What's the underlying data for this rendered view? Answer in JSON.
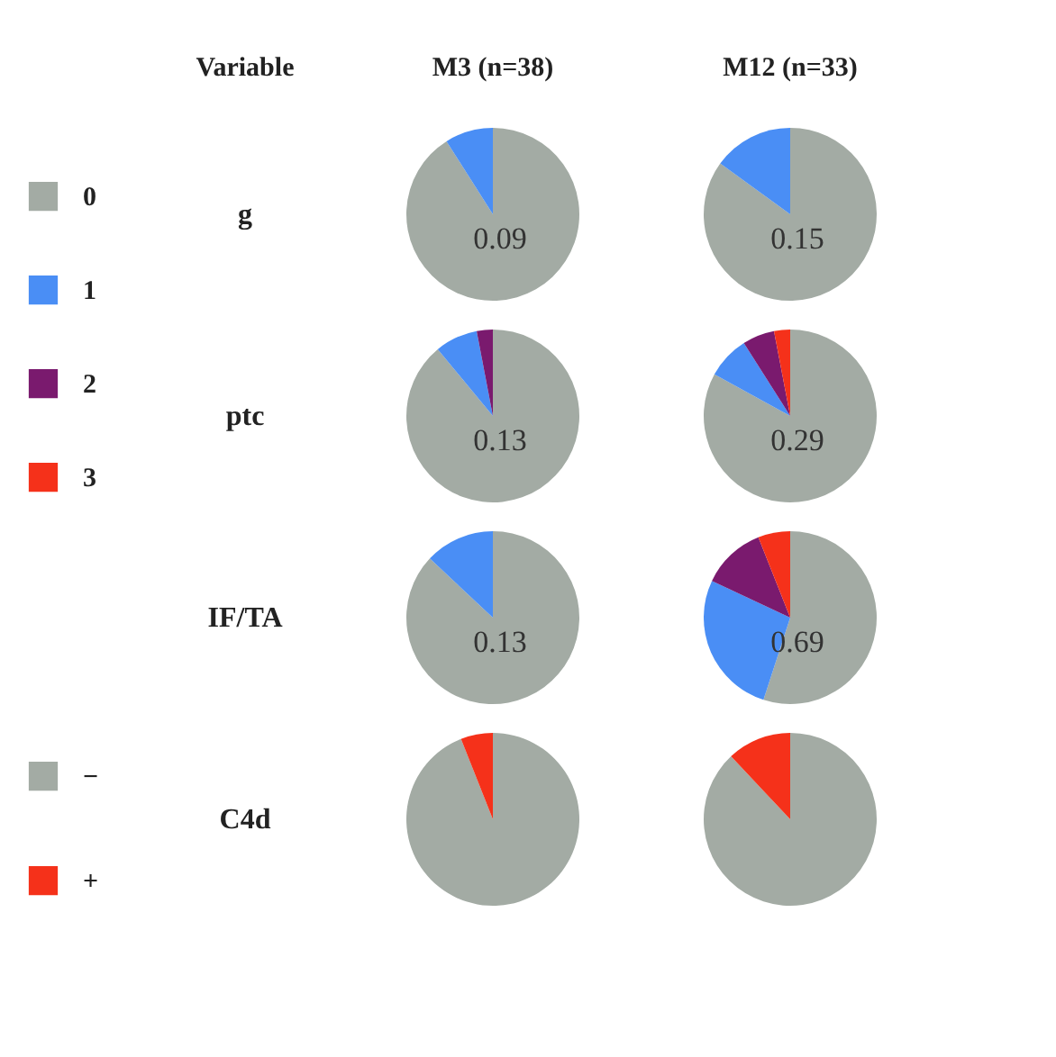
{
  "chart_data": [
    {
      "type": "other",
      "annotations": [
        "Variable",
        "M3 (n=38)",
        "M12 (n=33)"
      ]
    },
    {
      "type": "pie",
      "title": "g",
      "categories": [
        "0",
        "1",
        "2",
        "3"
      ],
      "values": [
        91,
        9,
        0,
        0
      ],
      "colors": [
        "#a3aba4",
        "#4a8ef5",
        "#7a1a6e",
        "#f5311a"
      ],
      "annotations": [
        "0.09"
      ],
      "legend": "left"
    },
    {
      "type": "pie",
      "categories": [
        null,
        null,
        null,
        null
      ],
      "values": [
        85,
        15,
        0,
        0
      ],
      "colors": [
        "#a3aba4",
        "#4a8ef5",
        "#7a1a6e",
        "#f5311a"
      ],
      "annotations": [
        "0.15"
      ]
    },
    {
      "type": "pie",
      "title": "ptc",
      "categories": [
        null,
        null,
        null,
        null
      ],
      "values": [
        89,
        8,
        3,
        0
      ],
      "colors": [
        "#a3aba4",
        "#4a8ef5",
        "#7a1a6e",
        "#f5311a"
      ],
      "annotations": [
        "0.13"
      ]
    },
    {
      "type": "pie",
      "categories": [
        null,
        null,
        null,
        null
      ],
      "values": [
        83,
        8,
        6,
        3
      ],
      "colors": [
        "#a3aba4",
        "#4a8ef5",
        "#7a1a6e",
        "#f5311a"
      ],
      "annotations": [
        "0.29"
      ]
    },
    {
      "type": "pie",
      "title": "IF/TA",
      "categories": [
        null,
        null,
        null,
        null
      ],
      "values": [
        87,
        13,
        0,
        0
      ],
      "colors": [
        "#a3aba4",
        "#4a8ef5",
        "#7a1a6e",
        "#f5311a"
      ],
      "annotations": [
        "0.13"
      ]
    },
    {
      "type": "pie",
      "categories": [
        null,
        null,
        null,
        null
      ],
      "values": [
        55,
        27,
        12,
        6
      ],
      "colors": [
        "#a3aba4",
        "#4a8ef5",
        "#7a1a6e",
        "#f5311a"
      ],
      "annotations": [
        "0.69"
      ]
    },
    {
      "type": "pie",
      "title": "C4d",
      "categories": [
        "−",
        "+"
      ],
      "values": [
        94,
        6
      ],
      "colors": [
        "#a3aba4",
        "#f5311a"
      ],
      "legend": "left"
    },
    {
      "type": "pie",
      "categories": [
        null,
        null
      ],
      "values": [
        88,
        12
      ],
      "colors": [
        "#a3aba4",
        "#f5311a"
      ]
    }
  ]
}
